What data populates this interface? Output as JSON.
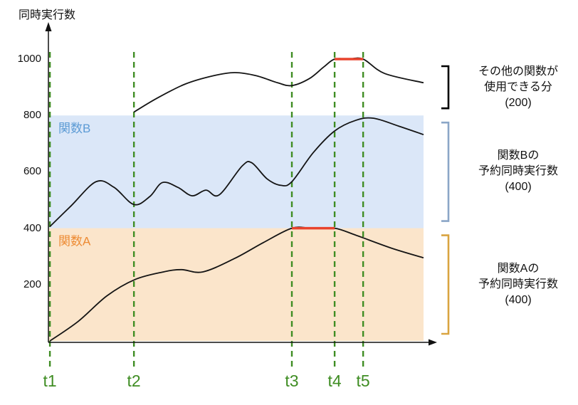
{
  "figure": {
    "title": "同時実行数"
  },
  "chart_data": {
    "type": "line",
    "title": "",
    "ylabel": "同時実行数",
    "ylim": [
      0,
      1050
    ],
    "xlim": [
      0,
      100
    ],
    "grid": false,
    "y_ticks": [
      200,
      400,
      600,
      800,
      1000
    ],
    "x_ticks": [
      {
        "label": "t1",
        "x": 0.4
      },
      {
        "label": "t2",
        "x": 22.8
      },
      {
        "label": "t3",
        "x": 64.9
      },
      {
        "label": "t4",
        "x": 76.3
      },
      {
        "label": "t5",
        "x": 83.9
      }
    ],
    "guide_color": "#3f8d23",
    "regions": [
      {
        "name": "関数B",
        "y0": 400,
        "y1": 800,
        "fill": "#dbe7f8",
        "label_color": "#5c9bd5"
      },
      {
        "name": "関数A",
        "y0": 0,
        "y1": 400,
        "fill": "#fbe5cb",
        "label_color": "#ed8b34"
      }
    ],
    "series": [
      {
        "name": "usage-curve-function-a",
        "color": "#141414",
        "points": [
          [
            0.4,
            0
          ],
          [
            8,
            70
          ],
          [
            15.6,
            160
          ],
          [
            23.1,
            218
          ],
          [
            30.7,
            245
          ],
          [
            35.5,
            253
          ],
          [
            41.2,
            245
          ],
          [
            49.7,
            293
          ],
          [
            57.3,
            349
          ],
          [
            64.9,
            400
          ],
          [
            70,
            400
          ],
          [
            76.3,
            400
          ],
          [
            82,
            375
          ],
          [
            91.5,
            329
          ],
          [
            100,
            295
          ]
        ]
      },
      {
        "name": "usage-curve-function-b",
        "color": "#141414",
        "points": [
          [
            0.4,
            406
          ],
          [
            6.1,
            480
          ],
          [
            12.7,
            565
          ],
          [
            17.5,
            545
          ],
          [
            22.8,
            484
          ],
          [
            27,
            512
          ],
          [
            30.4,
            562
          ],
          [
            34.5,
            545
          ],
          [
            38.3,
            515
          ],
          [
            42,
            535
          ],
          [
            45.5,
            518
          ],
          [
            51.6,
            620
          ],
          [
            54.2,
            632
          ],
          [
            58.3,
            575
          ],
          [
            62,
            552
          ],
          [
            64.9,
            565
          ],
          [
            70.6,
            668
          ],
          [
            76.3,
            745
          ],
          [
            82,
            783
          ],
          [
            86.7,
            790
          ],
          [
            93.4,
            762
          ],
          [
            100,
            732
          ]
        ]
      },
      {
        "name": "usage-curve-other-functions",
        "color": "#141414",
        "points": [
          [
            22.8,
            812
          ],
          [
            28.8,
            860
          ],
          [
            36.4,
            911
          ],
          [
            44,
            941
          ],
          [
            49.7,
            952
          ],
          [
            55.4,
            941
          ],
          [
            61.1,
            916
          ],
          [
            64.9,
            906
          ],
          [
            69.6,
            931
          ],
          [
            73.4,
            972
          ],
          [
            76.3,
            1000
          ],
          [
            80,
            1000
          ],
          [
            83.9,
            1000
          ],
          [
            89.6,
            949
          ],
          [
            100,
            916
          ]
        ]
      }
    ],
    "throttle_segments": [
      {
        "y": 400,
        "x0": 64.9,
        "x1": 76.3,
        "color": "#e8432d"
      },
      {
        "y": 1000,
        "x0": 76.3,
        "x1": 83.9,
        "color": "#e8432d"
      }
    ],
    "annotations": [
      {
        "bracket_color": "#000000",
        "y_range": [
          800,
          1000
        ],
        "lines": [
          "その他の関数が",
          "使用できる分",
          "(200)"
        ]
      },
      {
        "bracket_color": "#8ba6c7",
        "y_range": [
          400,
          800
        ],
        "lines": [
          "関数Bの",
          "予約同時実行数",
          "(400)"
        ]
      },
      {
        "bracket_color": "#d9a440",
        "y_range": [
          0,
          400
        ],
        "lines": [
          "関数Aの",
          "予約同時実行数",
          "(400)"
        ]
      }
    ]
  }
}
